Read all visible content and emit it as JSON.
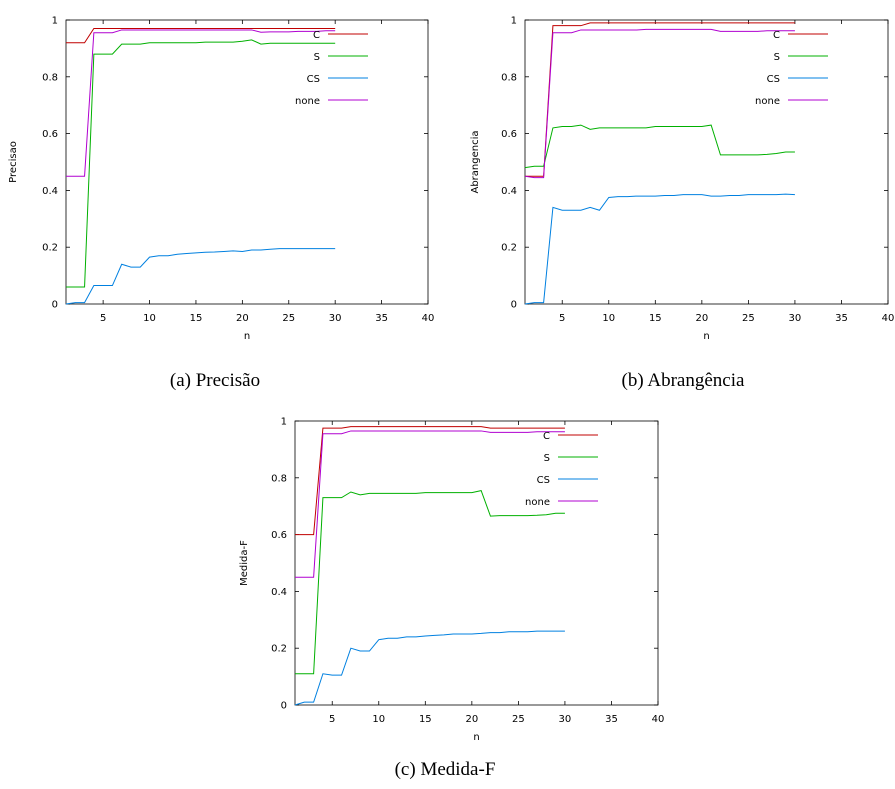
{
  "chart_data": [
    {
      "type": "line",
      "caption": "(a)  Precisão",
      "xlabel": "n",
      "ylabel": "Precisao",
      "xlim": [
        1,
        40
      ],
      "ylim": [
        0,
        1
      ],
      "xticks": [
        5,
        10,
        15,
        20,
        25,
        30,
        35,
        40
      ],
      "yticks": [
        0,
        0.2,
        0.4,
        0.6,
        0.8,
        1
      ],
      "legend_position": "top-right",
      "series": [
        {
          "name": "C",
          "color": "#c00000",
          "x": [
            1,
            2,
            3,
            4,
            5,
            6,
            7,
            8,
            9,
            10,
            11,
            12,
            13,
            14,
            15,
            16,
            17,
            18,
            19,
            20,
            21,
            22,
            23,
            24,
            25,
            26,
            27,
            28,
            29,
            30
          ],
          "y": [
            0.92,
            0.92,
            0.92,
            0.97,
            0.97,
            0.97,
            0.97,
            0.97,
            0.97,
            0.97,
            0.97,
            0.97,
            0.97,
            0.97,
            0.97,
            0.97,
            0.97,
            0.97,
            0.97,
            0.97,
            0.97,
            0.97,
            0.97,
            0.97,
            0.97,
            0.97,
            0.97,
            0.97,
            0.97,
            0.97
          ]
        },
        {
          "name": "S",
          "color": "#00b000",
          "x": [
            1,
            2,
            3,
            4,
            5,
            6,
            7,
            8,
            9,
            10,
            11,
            12,
            13,
            14,
            15,
            16,
            17,
            18,
            19,
            20,
            21,
            22,
            23,
            24,
            25,
            26,
            27,
            28,
            29,
            30
          ],
          "y": [
            0.06,
            0.06,
            0.06,
            0.88,
            0.88,
            0.88,
            0.915,
            0.915,
            0.915,
            0.92,
            0.92,
            0.92,
            0.92,
            0.92,
            0.92,
            0.922,
            0.922,
            0.922,
            0.922,
            0.925,
            0.93,
            0.915,
            0.918,
            0.918,
            0.918,
            0.918,
            0.918,
            0.918,
            0.918,
            0.918
          ]
        },
        {
          "name": "CS",
          "color": "#0080e0",
          "x": [
            1,
            2,
            3,
            4,
            5,
            6,
            7,
            8,
            9,
            10,
            11,
            12,
            13,
            14,
            15,
            16,
            17,
            18,
            19,
            20,
            21,
            22,
            23,
            24,
            25,
            26,
            27,
            28,
            29,
            30
          ],
          "y": [
            0.0,
            0.005,
            0.005,
            0.065,
            0.065,
            0.065,
            0.14,
            0.13,
            0.13,
            0.165,
            0.17,
            0.17,
            0.175,
            0.178,
            0.18,
            0.182,
            0.183,
            0.185,
            0.187,
            0.185,
            0.19,
            0.19,
            0.193,
            0.195,
            0.195,
            0.195,
            0.195,
            0.195,
            0.195,
            0.195
          ]
        },
        {
          "name": "none",
          "color": "#b000d0",
          "x": [
            1,
            2,
            3,
            4,
            5,
            6,
            7,
            8,
            9,
            10,
            11,
            12,
            13,
            14,
            15,
            16,
            17,
            18,
            19,
            20,
            21,
            22,
            23,
            24,
            25,
            26,
            27,
            28,
            29,
            30
          ],
          "y": [
            0.45,
            0.45,
            0.45,
            0.955,
            0.955,
            0.955,
            0.965,
            0.965,
            0.965,
            0.965,
            0.965,
            0.965,
            0.965,
            0.965,
            0.965,
            0.965,
            0.965,
            0.965,
            0.965,
            0.965,
            0.965,
            0.957,
            0.958,
            0.958,
            0.958,
            0.96,
            0.96,
            0.96,
            0.962,
            0.962
          ]
        }
      ]
    },
    {
      "type": "line",
      "caption": "(b)  Abrangência",
      "xlabel": "n",
      "ylabel": "Abrangencia",
      "xlim": [
        1,
        40
      ],
      "ylim": [
        0,
        1
      ],
      "xticks": [
        5,
        10,
        15,
        20,
        25,
        30,
        35,
        40
      ],
      "yticks": [
        0,
        0.2,
        0.4,
        0.6,
        0.8,
        1
      ],
      "legend_position": "top-right",
      "series": [
        {
          "name": "C",
          "color": "#c00000",
          "x": [
            1,
            2,
            3,
            4,
            5,
            6,
            7,
            8,
            9,
            10,
            11,
            12,
            13,
            14,
            15,
            16,
            17,
            18,
            19,
            20,
            21,
            22,
            23,
            24,
            25,
            26,
            27,
            28,
            29,
            30
          ],
          "y": [
            0.45,
            0.45,
            0.45,
            0.98,
            0.98,
            0.98,
            0.98,
            0.99,
            0.99,
            0.99,
            0.99,
            0.99,
            0.99,
            0.99,
            0.99,
            0.99,
            0.99,
            0.99,
            0.99,
            0.99,
            0.99,
            0.99,
            0.99,
            0.99,
            0.99,
            0.99,
            0.99,
            0.99,
            0.99,
            0.99
          ]
        },
        {
          "name": "S",
          "color": "#00b000",
          "x": [
            1,
            2,
            3,
            4,
            5,
            6,
            7,
            8,
            9,
            10,
            11,
            12,
            13,
            14,
            15,
            16,
            17,
            18,
            19,
            20,
            21,
            22,
            23,
            24,
            25,
            26,
            27,
            28,
            29,
            30
          ],
          "y": [
            0.48,
            0.485,
            0.485,
            0.62,
            0.625,
            0.625,
            0.63,
            0.615,
            0.62,
            0.62,
            0.62,
            0.62,
            0.62,
            0.62,
            0.625,
            0.625,
            0.625,
            0.625,
            0.625,
            0.625,
            0.63,
            0.525,
            0.525,
            0.525,
            0.525,
            0.525,
            0.527,
            0.53,
            0.535,
            0.535
          ]
        },
        {
          "name": "CS",
          "color": "#0080e0",
          "x": [
            1,
            2,
            3,
            4,
            5,
            6,
            7,
            8,
            9,
            10,
            11,
            12,
            13,
            14,
            15,
            16,
            17,
            18,
            19,
            20,
            21,
            22,
            23,
            24,
            25,
            26,
            27,
            28,
            29,
            30
          ],
          "y": [
            0.0,
            0.005,
            0.005,
            0.34,
            0.33,
            0.33,
            0.33,
            0.34,
            0.33,
            0.375,
            0.378,
            0.378,
            0.38,
            0.38,
            0.38,
            0.382,
            0.382,
            0.385,
            0.385,
            0.385,
            0.38,
            0.38,
            0.382,
            0.382,
            0.385,
            0.385,
            0.385,
            0.385,
            0.387,
            0.385
          ]
        },
        {
          "name": "none",
          "color": "#b000d0",
          "x": [
            1,
            2,
            3,
            4,
            5,
            6,
            7,
            8,
            9,
            10,
            11,
            12,
            13,
            14,
            15,
            16,
            17,
            18,
            19,
            20,
            21,
            22,
            23,
            24,
            25,
            26,
            27,
            28,
            29,
            30
          ],
          "y": [
            0.45,
            0.445,
            0.445,
            0.955,
            0.955,
            0.955,
            0.965,
            0.965,
            0.965,
            0.965,
            0.965,
            0.965,
            0.965,
            0.967,
            0.967,
            0.967,
            0.967,
            0.967,
            0.967,
            0.967,
            0.967,
            0.96,
            0.96,
            0.96,
            0.96,
            0.96,
            0.962,
            0.962,
            0.962,
            0.962
          ]
        }
      ]
    },
    {
      "type": "line",
      "caption": "(c)  Medida-F",
      "xlabel": "n",
      "ylabel": "Medida-F",
      "xlim": [
        1,
        40
      ],
      "ylim": [
        0,
        1
      ],
      "xticks": [
        5,
        10,
        15,
        20,
        25,
        30,
        35,
        40
      ],
      "yticks": [
        0,
        0.2,
        0.4,
        0.6,
        0.8,
        1
      ],
      "legend_position": "top-right",
      "series": [
        {
          "name": "C",
          "color": "#c00000",
          "x": [
            1,
            2,
            3,
            4,
            5,
            6,
            7,
            8,
            9,
            10,
            11,
            12,
            13,
            14,
            15,
            16,
            17,
            18,
            19,
            20,
            21,
            22,
            23,
            24,
            25,
            26,
            27,
            28,
            29,
            30
          ],
          "y": [
            0.6,
            0.6,
            0.6,
            0.975,
            0.975,
            0.975,
            0.98,
            0.98,
            0.98,
            0.98,
            0.98,
            0.98,
            0.98,
            0.98,
            0.98,
            0.98,
            0.98,
            0.98,
            0.98,
            0.98,
            0.98,
            0.975,
            0.975,
            0.975,
            0.975,
            0.975,
            0.975,
            0.975,
            0.975,
            0.975
          ]
        },
        {
          "name": "S",
          "color": "#00b000",
          "x": [
            1,
            2,
            3,
            4,
            5,
            6,
            7,
            8,
            9,
            10,
            11,
            12,
            13,
            14,
            15,
            16,
            17,
            18,
            19,
            20,
            21,
            22,
            23,
            24,
            25,
            26,
            27,
            28,
            29,
            30
          ],
          "y": [
            0.11,
            0.11,
            0.11,
            0.73,
            0.73,
            0.73,
            0.75,
            0.74,
            0.745,
            0.745,
            0.745,
            0.745,
            0.745,
            0.745,
            0.748,
            0.748,
            0.748,
            0.748,
            0.748,
            0.748,
            0.755,
            0.665,
            0.667,
            0.667,
            0.667,
            0.667,
            0.668,
            0.67,
            0.675,
            0.675
          ]
        },
        {
          "name": "CS",
          "color": "#0080e0",
          "x": [
            1,
            2,
            3,
            4,
            5,
            6,
            7,
            8,
            9,
            10,
            11,
            12,
            13,
            14,
            15,
            16,
            17,
            18,
            19,
            20,
            21,
            22,
            23,
            24,
            25,
            26,
            27,
            28,
            29,
            30
          ],
          "y": [
            0.0,
            0.01,
            0.01,
            0.11,
            0.105,
            0.105,
            0.2,
            0.19,
            0.19,
            0.23,
            0.235,
            0.235,
            0.24,
            0.24,
            0.243,
            0.245,
            0.247,
            0.25,
            0.25,
            0.25,
            0.252,
            0.255,
            0.255,
            0.258,
            0.258,
            0.258,
            0.26,
            0.26,
            0.26,
            0.26
          ]
        },
        {
          "name": "none",
          "color": "#b000d0",
          "x": [
            1,
            2,
            3,
            4,
            5,
            6,
            7,
            8,
            9,
            10,
            11,
            12,
            13,
            14,
            15,
            16,
            17,
            18,
            19,
            20,
            21,
            22,
            23,
            24,
            25,
            26,
            27,
            28,
            29,
            30
          ],
          "y": [
            0.45,
            0.45,
            0.45,
            0.955,
            0.955,
            0.955,
            0.965,
            0.965,
            0.965,
            0.965,
            0.965,
            0.965,
            0.965,
            0.965,
            0.965,
            0.965,
            0.965,
            0.965,
            0.965,
            0.965,
            0.965,
            0.96,
            0.96,
            0.96,
            0.96,
            0.96,
            0.962,
            0.962,
            0.962,
            0.962
          ]
        }
      ]
    }
  ]
}
